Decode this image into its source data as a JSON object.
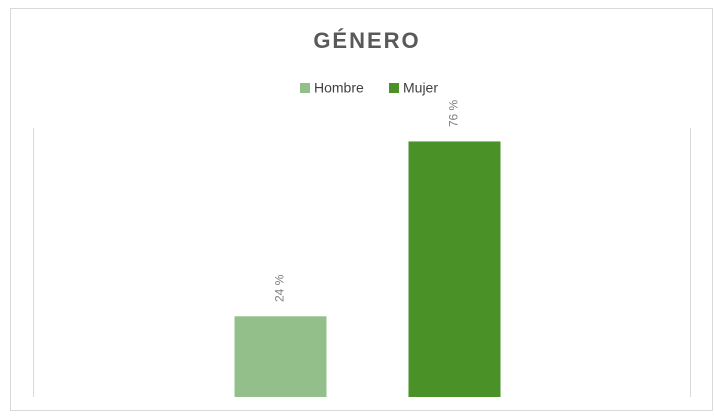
{
  "chart_data": {
    "type": "bar",
    "title": "GÉNERO",
    "categories": [
      null
    ],
    "series": [
      {
        "name": "Hombre",
        "color": "#93c08a",
        "values": [
          24
        ],
        "value_labels": [
          "24 %"
        ]
      },
      {
        "name": "Mujer",
        "color": "#4a9128",
        "values": [
          76
        ],
        "value_labels": [
          "76 %"
        ]
      }
    ],
    "ylim": [
      0,
      80
    ],
    "legend": "top"
  }
}
